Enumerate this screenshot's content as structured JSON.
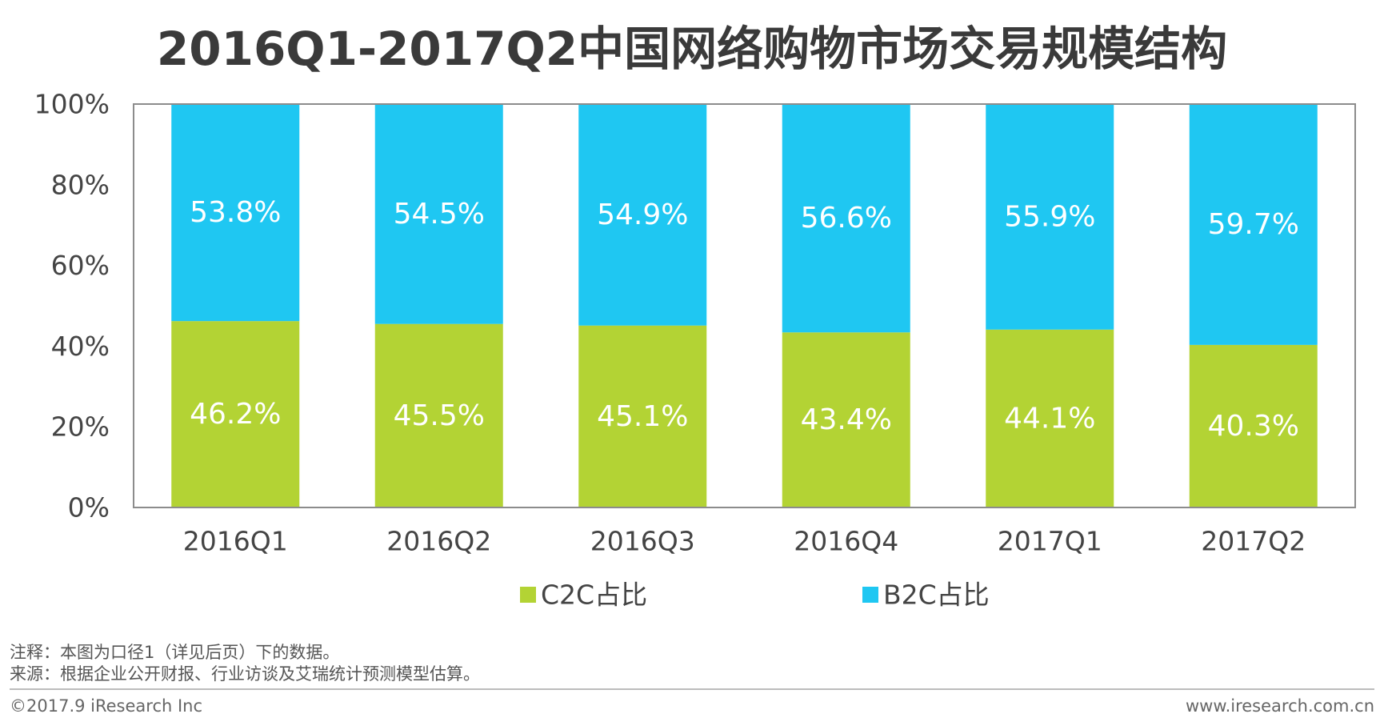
{
  "chart_data": {
    "type": "bar",
    "stacked": true,
    "title": "2016Q1-2017Q2中国网络购物市场交易规模结构",
    "categories": [
      "2016Q1",
      "2016Q2",
      "2016Q3",
      "2016Q4",
      "2017Q1",
      "2017Q2"
    ],
    "series": [
      {
        "name": "C2C占比",
        "values": [
          46.2,
          45.5,
          45.1,
          43.4,
          44.1,
          40.3
        ],
        "labels": [
          "46.2%",
          "45.5%",
          "45.1%",
          "43.4%",
          "44.1%",
          "40.3%"
        ],
        "color": "#b3d334"
      },
      {
        "name": "B2C占比",
        "values": [
          53.8,
          54.5,
          54.9,
          56.6,
          55.9,
          59.7
        ],
        "labels": [
          "53.8%",
          "54.5%",
          "54.9%",
          "56.6%",
          "55.9%",
          "59.7%"
        ],
        "color": "#1fc7f2"
      }
    ],
    "ylim": [
      0,
      100
    ],
    "yticks": [
      0,
      20,
      40,
      60,
      80,
      100
    ],
    "ytick_labels": [
      "0%",
      "20%",
      "40%",
      "60%",
      "80%",
      "100%"
    ],
    "xlabel": "",
    "ylabel": "",
    "grid": false,
    "legend_position": "bottom"
  },
  "footer": {
    "note": "注释：本图为口径1（详见后页）下的数据。",
    "source": "来源：根据企业公开财报、行业访谈及艾瑞统计预测模型估算。",
    "copyright": "©2017.9 iResearch Inc",
    "website": "www.iresearch.com.cn"
  }
}
